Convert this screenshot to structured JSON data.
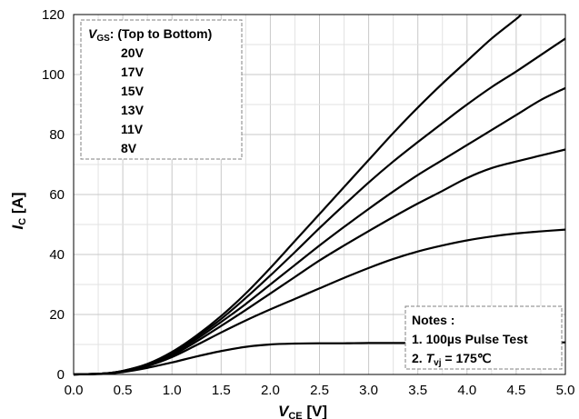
{
  "chart_data": {
    "type": "line",
    "xlabel": {
      "main": "V",
      "sub": "CE",
      "unit": " [V]"
    },
    "ylabel": {
      "main": "I",
      "sub": "C",
      "unit": " [A]"
    },
    "xlim": [
      0.0,
      5.0
    ],
    "ylim": [
      0,
      120
    ],
    "x_ticks": [
      0.0,
      0.5,
      1.0,
      1.5,
      2.0,
      2.5,
      3.0,
      3.5,
      4.0,
      4.5,
      5.0
    ],
    "x_tick_labels": [
      "0.0",
      "0.5",
      "1.0",
      "1.5",
      "2.0",
      "2.5",
      "3.0",
      "3.5",
      "4.0",
      "4.5",
      "5.0"
    ],
    "y_ticks": [
      0,
      20,
      40,
      60,
      80,
      100,
      120
    ],
    "y_tick_labels": [
      "0",
      "20",
      "40",
      "60",
      "80",
      "100",
      "120"
    ],
    "grid": true,
    "legend": {
      "placement": "top-left",
      "title_main": "V",
      "title_sub": "GS",
      "title_rest": ": (Top to Bottom)",
      "entries": [
        "20V",
        "17V",
        "15V",
        "13V",
        "11V",
        "8V"
      ]
    },
    "notes": {
      "placement": "bottom-right",
      "heading": "Notes :",
      "line1": "1. 100µs Pulse Test",
      "line2_prefix": "2. ",
      "line2_var": "T",
      "line2_sub": "vj",
      "line2_rest": " = 175℃"
    },
    "series": [
      {
        "x": [
          0,
          0.3,
          0.5,
          0.75,
          1.0,
          1.25,
          1.5,
          1.75,
          2.0,
          2.25,
          2.5,
          2.75,
          3.0,
          3.25,
          3.5,
          3.75,
          4.0,
          4.25,
          4.5,
          4.55
        ],
        "y": [
          0,
          0.3,
          1.2,
          3.5,
          7.5,
          13,
          19.5,
          27,
          35.5,
          44.5,
          53.5,
          62.5,
          71.5,
          80.5,
          89,
          97,
          104.5,
          112,
          118.5,
          120
        ]
      },
      {
        "x": [
          0,
          0.3,
          0.5,
          0.75,
          1.0,
          1.25,
          1.5,
          1.75,
          2.0,
          2.25,
          2.5,
          2.75,
          3.0,
          3.25,
          3.5,
          3.75,
          4.0,
          4.25,
          4.5,
          4.75,
          5.0
        ],
        "y": [
          0,
          0.3,
          1.2,
          3.4,
          7.2,
          12.5,
          18.5,
          25.5,
          33,
          40.8,
          48.8,
          56.5,
          64,
          71,
          77.5,
          83.8,
          90,
          95.8,
          101,
          106.5,
          112
        ]
      },
      {
        "x": [
          0,
          0.3,
          0.5,
          0.75,
          1.0,
          1.25,
          1.5,
          1.75,
          2.0,
          2.25,
          2.5,
          2.75,
          3.0,
          3.25,
          3.5,
          3.75,
          4.0,
          4.25,
          4.5,
          4.75,
          5.0
        ],
        "y": [
          0,
          0.3,
          1.1,
          3.2,
          6.8,
          11.8,
          17.5,
          23.5,
          30,
          36.5,
          43,
          49.2,
          55.2,
          61,
          66.5,
          71.5,
          76.5,
          81.5,
          86.5,
          91.5,
          95.5
        ]
      },
      {
        "x": [
          0,
          0.3,
          0.5,
          0.75,
          1.0,
          1.25,
          1.5,
          1.75,
          2.0,
          2.25,
          2.5,
          2.75,
          3.0,
          3.25,
          3.5,
          3.75,
          4.0,
          4.25,
          4.5,
          4.75,
          5.0
        ],
        "y": [
          0,
          0.3,
          1.0,
          3.0,
          6.3,
          11,
          16.2,
          21.5,
          27,
          32.5,
          38,
          43,
          47.8,
          52.5,
          57,
          61.2,
          65.5,
          68.8,
          71,
          73,
          75
        ]
      },
      {
        "x": [
          0,
          0.3,
          0.5,
          0.75,
          1.0,
          1.25,
          1.5,
          1.75,
          2.0,
          2.25,
          2.5,
          2.75,
          3.0,
          3.25,
          3.5,
          3.75,
          4.0,
          4.25,
          4.5,
          4.75,
          5.0
        ],
        "y": [
          0,
          0.3,
          1.0,
          2.8,
          5.8,
          9.8,
          14,
          18,
          21.7,
          25.2,
          28.7,
          32.2,
          35.5,
          38.5,
          41,
          43,
          44.7,
          46,
          47,
          47.7,
          48.3
        ]
      },
      {
        "x": [
          0,
          0.3,
          0.5,
          0.75,
          1.0,
          1.25,
          1.5,
          1.75,
          2.0,
          2.25,
          2.5,
          2.75,
          3.0,
          3.5,
          4.0,
          4.5,
          5.0
        ],
        "y": [
          0,
          0.2,
          0.8,
          2.2,
          4.0,
          6.0,
          7.8,
          9.2,
          10.0,
          10.3,
          10.4,
          10.4,
          10.5,
          10.5,
          10.6,
          10.6,
          10.7
        ]
      }
    ]
  }
}
